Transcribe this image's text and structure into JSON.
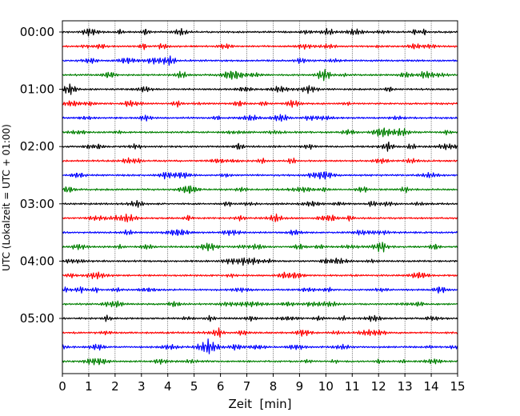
{
  "chart_data": {
    "type": "line",
    "title": "",
    "xlabel": "Zeit  [min]",
    "ylabel": "UTC (Lokalzeit = UTC + 01:00)",
    "xlim": [
      0,
      15
    ],
    "x_ticks": [
      "0",
      "1",
      "2",
      "3",
      "4",
      "5",
      "6",
      "7",
      "8",
      "9",
      "10",
      "11",
      "12",
      "13",
      "14",
      "15"
    ],
    "y_ticks": [
      {
        "label": "00:00",
        "row": 0
      },
      {
        "label": "01:00",
        "row": 4
      },
      {
        "label": "02:00",
        "row": 8
      },
      {
        "label": "03:00",
        "row": 12
      },
      {
        "label": "04:00",
        "row": 16
      },
      {
        "label": "05:00",
        "row": 20
      }
    ],
    "grid": "vertical dotted lines at each minute",
    "trace_count": 24,
    "trace_minutes": 15,
    "trace_colors": [
      "#000000",
      "#ff0000",
      "#0000ff",
      "#008000"
    ],
    "description": "Helicorder-style seismogram: 24 traces, each 15 minutes long, colors cycling black, red, blue, green"
  }
}
